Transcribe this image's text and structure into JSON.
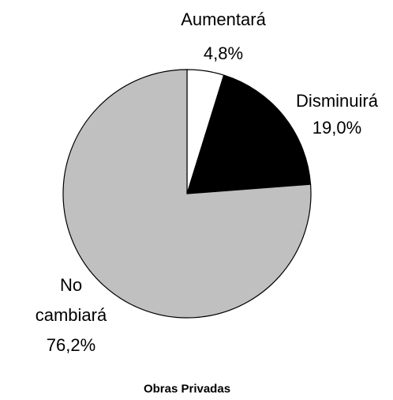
{
  "chart_data": {
    "type": "pie",
    "title": "Obras Privadas",
    "categories": [
      "Aumentará",
      "Disminuirá",
      "No cambiará"
    ],
    "values": [
      4.8,
      19.0,
      76.2
    ],
    "value_labels": [
      "4,8%",
      "19,0%",
      "76,2%"
    ],
    "colors": [
      "#ffffff",
      "#000000",
      "#c0c0c0"
    ]
  }
}
